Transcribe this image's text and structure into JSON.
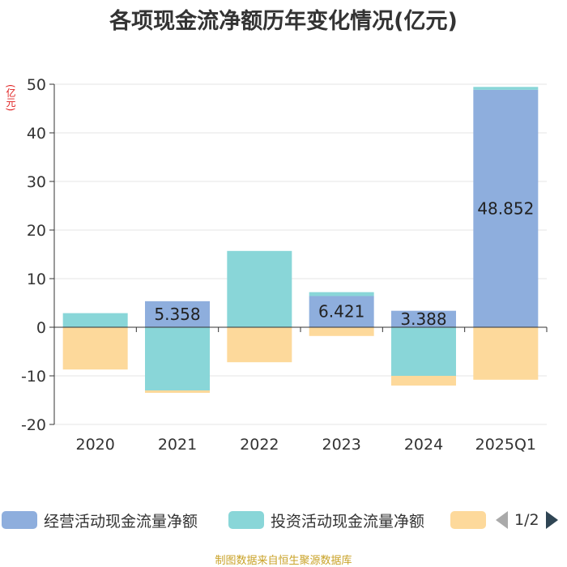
{
  "title": "各项现金流净额历年变化情况(亿元)",
  "unit": "(亿元)",
  "source": "制图数据来自恒生聚源数据库",
  "colors": {
    "operating": "#8eaedd",
    "investing": "#89d6d8",
    "financing": "#fdd99b",
    "grid": "#e6e6e6",
    "axis": "#333333"
  },
  "legend": {
    "items": [
      {
        "label": "经营活动现金流量净额",
        "color": "#8eaedd"
      },
      {
        "label": "投资活动现金流量净额",
        "color": "#89d6d8"
      },
      {
        "label": "",
        "color": "#fdd99b"
      }
    ],
    "page": "1/2"
  },
  "chart_data": {
    "type": "bar",
    "stacked": true,
    "categories": [
      "2020",
      "2021",
      "2022",
      "2023",
      "2024",
      "2025Q1"
    ],
    "ylim": [
      -20,
      50
    ],
    "yticks": [
      -20,
      -10,
      0,
      10,
      20,
      30,
      40,
      50
    ],
    "grid": true,
    "legend_position": "bottom",
    "series": [
      {
        "name": "经营活动现金流量净额",
        "values": [
          0.0,
          5.358,
          0.0,
          6.421,
          3.388,
          48.852
        ],
        "labels": [
          "",
          "5.358",
          "",
          "6.421",
          "3.388",
          "48.852"
        ]
      },
      {
        "name": "投资活动现金流量净额",
        "values": [
          2.9,
          -13.0,
          15.7,
          0.8,
          -10.0,
          0.6
        ]
      },
      {
        "name": "",
        "values": [
          -8.7,
          -0.5,
          -7.2,
          -1.8,
          -2.0,
          -10.8
        ]
      }
    ]
  }
}
